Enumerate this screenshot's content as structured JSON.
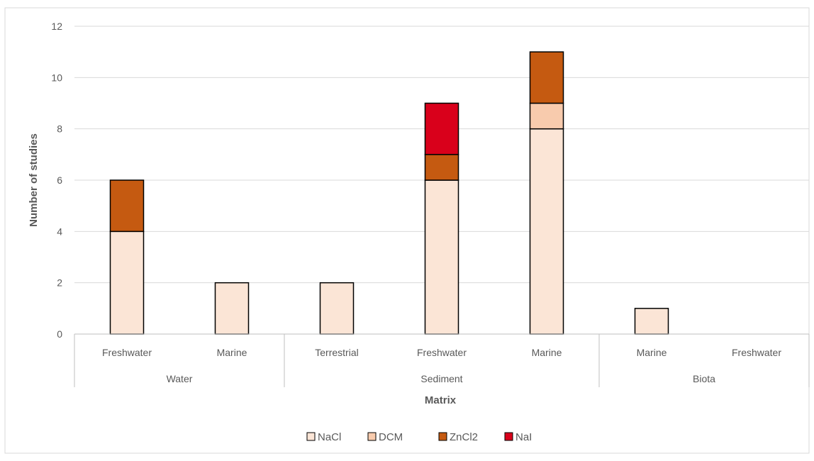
{
  "chart_data": {
    "type": "bar",
    "stacked": true,
    "xlabel": "Matrix",
    "ylabel": "Number of studies",
    "ylim": [
      0,
      12
    ],
    "yticks": [
      0,
      2,
      4,
      6,
      8,
      10,
      12
    ],
    "grid": true,
    "legend_position": "bottom",
    "groups": [
      {
        "name": "Water",
        "categories": [
          "Freshwater",
          "Marine"
        ]
      },
      {
        "name": "Sediment",
        "categories": [
          "Terrestrial",
          "Freshwater",
          "Marine"
        ]
      },
      {
        "name": "Biota",
        "categories": [
          "Marine",
          "Freshwater"
        ]
      }
    ],
    "series": [
      {
        "name": "NaCl",
        "color": "#fbe5d6",
        "values": [
          4,
          2,
          2,
          6,
          8,
          1,
          0
        ]
      },
      {
        "name": "DCM",
        "color": "#f8cbad",
        "values": [
          0,
          0,
          0,
          0,
          1,
          0,
          0
        ]
      },
      {
        "name": "ZnCl2",
        "color": "#c55a11",
        "values": [
          2,
          0,
          0,
          1,
          2,
          0,
          0
        ]
      },
      {
        "name": "NaI",
        "color": "#d9001b",
        "values": [
          0,
          0,
          0,
          2,
          0,
          0,
          0
        ]
      }
    ]
  }
}
